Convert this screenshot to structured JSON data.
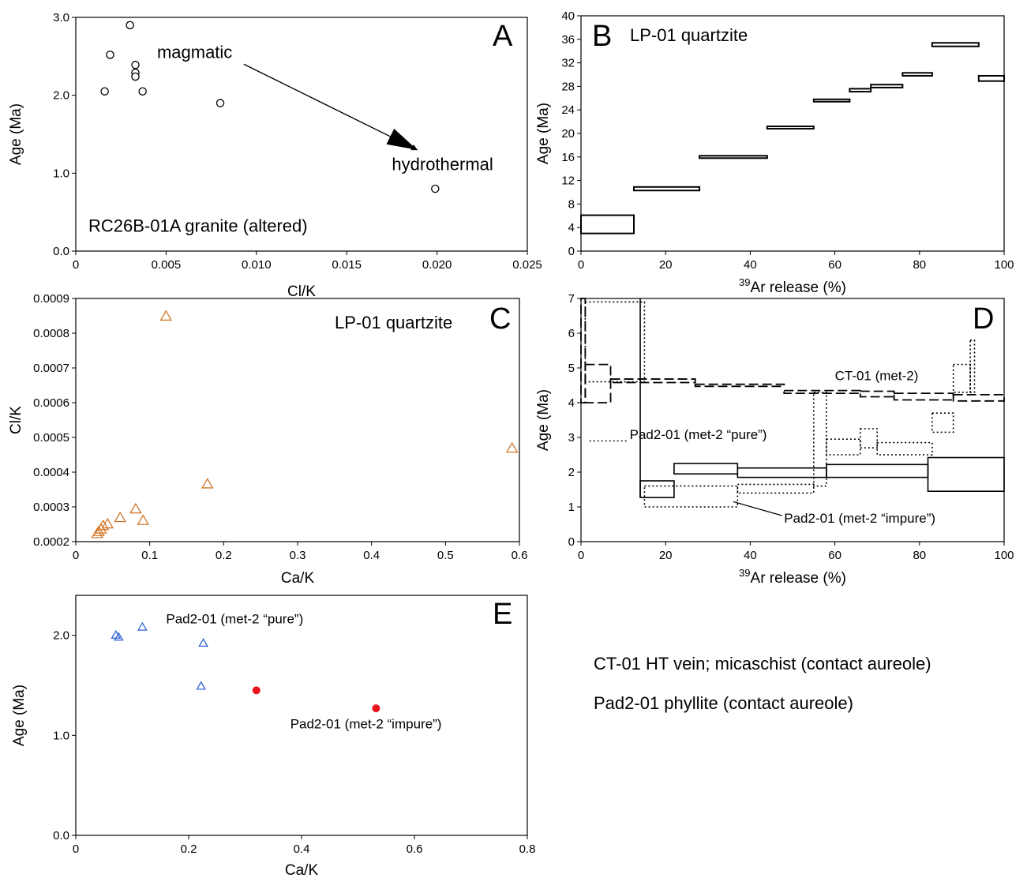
{
  "chart_data": [
    {
      "panel": "A",
      "type": "scatter",
      "letter": "A",
      "xlabel": "Cl/K",
      "ylabel": "Age (Ma)",
      "xlim": [
        0,
        0.025
      ],
      "ylim": [
        0,
        3.0
      ],
      "xticks": [
        0,
        0.005,
        0.01,
        0.015,
        0.02,
        0.025
      ],
      "xtick_labels": [
        "0",
        "0.005",
        "0.010",
        "0.015",
        "0.020",
        "0.025"
      ],
      "yticks": [
        0,
        1.0,
        2.0,
        3.0
      ],
      "ytick_labels": [
        "0.0",
        "1.0",
        "2.0",
        "3.0"
      ],
      "series": [
        {
          "marker": "open-circle",
          "color": "#000000",
          "x": [
            0.0016,
            0.0019,
            0.003,
            0.0033,
            0.0033,
            0.0033,
            0.0037,
            0.008,
            0.0199
          ],
          "y": [
            2.05,
            2.52,
            2.9,
            2.39,
            2.29,
            2.24,
            2.05,
            1.9,
            0.8
          ]
        }
      ],
      "annotations": [
        {
          "text": "magmatic",
          "x": 0.0045,
          "y": 2.48
        },
        {
          "text": "hydrothermal",
          "x": 0.0175,
          "y": 1.04
        },
        {
          "text": "RC26B-01A granite (altered)",
          "x": 0.0007,
          "y": 0.25
        }
      ],
      "arrow": {
        "from": [
          0.0093,
          2.4
        ],
        "to": [
          0.0189,
          1.3
        ]
      }
    },
    {
      "panel": "B",
      "type": "line",
      "letter": "B",
      "title": "LP-01 quartzite",
      "xlabel_sup": "39",
      "xlabel": "Ar release (%)",
      "ylabel": "Age (Ma)",
      "xlim": [
        0,
        100
      ],
      "ylim": [
        0,
        40
      ],
      "xticks": [
        0,
        20,
        40,
        60,
        80,
        100
      ],
      "xtick_labels": [
        "0",
        "20",
        "40",
        "60",
        "80",
        "100"
      ],
      "yticks": [
        0,
        4,
        8,
        12,
        16,
        20,
        24,
        28,
        32,
        36,
        40
      ],
      "ytick_labels": [
        "0",
        "4",
        "8",
        "12",
        "16",
        "20",
        "24",
        "28",
        "32",
        "36",
        "40"
      ],
      "steps": [
        {
          "x0": 0,
          "x1": 12.5,
          "lo": 3.0,
          "hi": 6.1
        },
        {
          "x0": 12.5,
          "x1": 28,
          "lo": 10.3,
          "hi": 10.9
        },
        {
          "x0": 28,
          "x1": 44,
          "lo": 15.8,
          "hi": 16.2
        },
        {
          "x0": 44,
          "x1": 55,
          "lo": 20.8,
          "hi": 21.2
        },
        {
          "x0": 55,
          "x1": 63.5,
          "lo": 25.4,
          "hi": 25.8
        },
        {
          "x0": 63.5,
          "x1": 68.5,
          "lo": 27.1,
          "hi": 27.6
        },
        {
          "x0": 68.5,
          "x1": 76,
          "lo": 27.8,
          "hi": 28.3
        },
        {
          "x0": 76,
          "x1": 83,
          "lo": 29.8,
          "hi": 30.3
        },
        {
          "x0": 83,
          "x1": 94,
          "lo": 34.8,
          "hi": 35.4
        },
        {
          "x0": 94,
          "x1": 100,
          "lo": 28.9,
          "hi": 29.8
        }
      ]
    },
    {
      "panel": "C",
      "type": "scatter",
      "letter": "C",
      "title": "LP-01 quartzite",
      "xlabel": "Ca/K",
      "ylabel": "Cl/K",
      "xlim": [
        0,
        0.6
      ],
      "ylim": [
        0.0002,
        0.0009
      ],
      "xticks": [
        0,
        0.1,
        0.2,
        0.3,
        0.4,
        0.5,
        0.6
      ],
      "xtick_labels": [
        "0",
        "0.1",
        "0.2",
        "0.3",
        "0.4",
        "0.5",
        "0.6"
      ],
      "yticks": [
        0.0002,
        0.0003,
        0.0004,
        0.0005,
        0.0006,
        0.0007,
        0.0008,
        0.0009
      ],
      "ytick_labels": [
        "0.0002",
        "0.0003",
        "0.0004",
        "0.0005",
        "0.0006",
        "0.0007",
        "0.0008",
        "0.0009"
      ],
      "series": [
        {
          "marker": "open-triangle",
          "color": "#d2772a",
          "x": [
            0.029,
            0.031,
            0.034,
            0.037,
            0.043,
            0.06,
            0.081,
            0.091,
            0.122,
            0.178,
            0.59
          ],
          "y": [
            0.000222,
            0.000228,
            0.000235,
            0.000245,
            0.00025,
            0.000268,
            0.000293,
            0.00026,
            0.000848,
            0.000365,
            0.000468
          ]
        }
      ]
    },
    {
      "panel": "D",
      "type": "line",
      "letter": "D",
      "xlabel_sup": "39",
      "xlabel": "Ar release (%)",
      "ylabel": "Age (Ma)",
      "xlim": [
        0,
        100
      ],
      "ylim": [
        0,
        7
      ],
      "xticks": [
        0,
        20,
        40,
        60,
        80,
        100
      ],
      "xtick_labels": [
        "0",
        "20",
        "40",
        "60",
        "80",
        "100"
      ],
      "yticks": [
        0,
        1,
        2,
        3,
        4,
        5,
        6,
        7
      ],
      "ytick_labels": [
        "0",
        "1",
        "2",
        "3",
        "4",
        "5",
        "6",
        "7"
      ],
      "series": [
        {
          "name": "CT-01 (met-2)",
          "style": "dashed",
          "steps": [
            {
              "x0": 0,
              "x1": 1,
              "lo": 4.0,
              "hi": 7.0
            },
            {
              "x0": 1,
              "x1": 7,
              "lo": 4.0,
              "hi": 5.1
            },
            {
              "x0": 7,
              "x1": 27,
              "lo": 4.58,
              "hi": 4.68
            },
            {
              "x0": 27,
              "x1": 48,
              "lo": 4.47,
              "hi": 4.53
            },
            {
              "x0": 48,
              "x1": 66,
              "lo": 4.27,
              "hi": 4.35
            },
            {
              "x0": 66,
              "x1": 74,
              "lo": 4.17,
              "hi": 4.33
            },
            {
              "x0": 74,
              "x1": 88,
              "lo": 4.08,
              "hi": 4.27
            },
            {
              "x0": 88,
              "x1": 100,
              "lo": 4.05,
              "hi": 4.23
            }
          ]
        },
        {
          "name": "Pad2-01 (met-2 “pure”)",
          "style": "dotted",
          "steps": [
            {
              "x0": 1,
              "x1": 15,
              "lo": 4.6,
              "hi": 6.9
            },
            {
              "x0": 15,
              "x1": 37,
              "lo": 1.0,
              "hi": 1.6
            },
            {
              "x0": 37,
              "x1": 55,
              "lo": 1.4,
              "hi": 1.65
            },
            {
              "x0": 55,
              "x1": 58,
              "lo": 1.6,
              "hi": 4.3
            },
            {
              "x0": 58,
              "x1": 66,
              "lo": 2.5,
              "hi": 2.95
            },
            {
              "x0": 66,
              "x1": 70,
              "lo": 2.7,
              "hi": 3.25
            },
            {
              "x0": 70,
              "x1": 83,
              "lo": 2.5,
              "hi": 2.85
            },
            {
              "x0": 83,
              "x1": 88,
              "lo": 3.15,
              "hi": 3.7
            },
            {
              "x0": 88,
              "x1": 92,
              "lo": 4.3,
              "hi": 5.1
            },
            {
              "x0": 92,
              "x1": 93,
              "lo": 4.3,
              "hi": 5.8
            }
          ]
        },
        {
          "name": "Pad2-01 (met-2 “impure”)",
          "style": "solid",
          "steps": [
            {
              "x0": 14,
              "x1": 22,
              "lo": 1.27,
              "hi": 1.75
            },
            {
              "x0": 22,
              "x1": 37,
              "lo": 1.95,
              "hi": 2.25
            },
            {
              "x0": 37,
              "x1": 58,
              "lo": 1.85,
              "hi": 2.12
            },
            {
              "x0": 58,
              "x1": 82,
              "lo": 1.85,
              "hi": 2.22
            },
            {
              "x0": 82,
              "x1": 100,
              "lo": 1.45,
              "hi": 2.42
            }
          ],
          "spike": {
            "x": 14,
            "lo": 1.27,
            "hi": 7.0
          }
        }
      ],
      "annotations": [
        {
          "text": "CT-01 (met-2)",
          "x": 60,
          "y": 4.65
        },
        {
          "text": "Pad2-01 (met-2 “pure”)",
          "x": 11.5,
          "y": 2.95
        },
        {
          "text": "Pad2-01 (met-2 “impure”)",
          "x": 48,
          "y": 0.55
        }
      ]
    },
    {
      "panel": "E",
      "type": "scatter",
      "letter": "E",
      "xlabel": "Ca/K",
      "ylabel": "Age (Ma)",
      "xlim": [
        0,
        0.8
      ],
      "ylim": [
        0,
        2.4
      ],
      "xticks": [
        0,
        0.2,
        0.4,
        0.6,
        0.8
      ],
      "xtick_labels": [
        "0",
        "0.2",
        "0.4",
        "0.6",
        "0.8"
      ],
      "yticks": [
        0,
        1.0,
        2.0
      ],
      "ytick_labels": [
        "0.0",
        "1.0",
        "2.0"
      ],
      "series": [
        {
          "name": "Pad2-01 (met-2 “pure”)",
          "marker": "open-triangle",
          "color": "#3060d8",
          "x": [
            0.071,
            0.076,
            0.118,
            0.226,
            0.222
          ],
          "y": [
            2.0,
            1.98,
            2.08,
            1.92,
            1.49
          ]
        },
        {
          "name": "Pad2-01 (met-2 “impure”)",
          "marker": "filled-circle",
          "color": "#e8141c",
          "x": [
            0.32,
            0.532
          ],
          "y": [
            1.45,
            1.27
          ]
        }
      ],
      "annotations": [
        {
          "text": "Pad2-01 (met-2 “pure”)",
          "x": 0.16,
          "y": 2.12
        },
        {
          "text": "Pad2-01 (met-2 “impure”)",
          "x": 0.38,
          "y": 1.07
        }
      ]
    }
  ],
  "legend_text": [
    "CT-01 HT vein; micaschist (contact aureole)",
    "Pad2-01 phyllite (contact aureole)"
  ]
}
